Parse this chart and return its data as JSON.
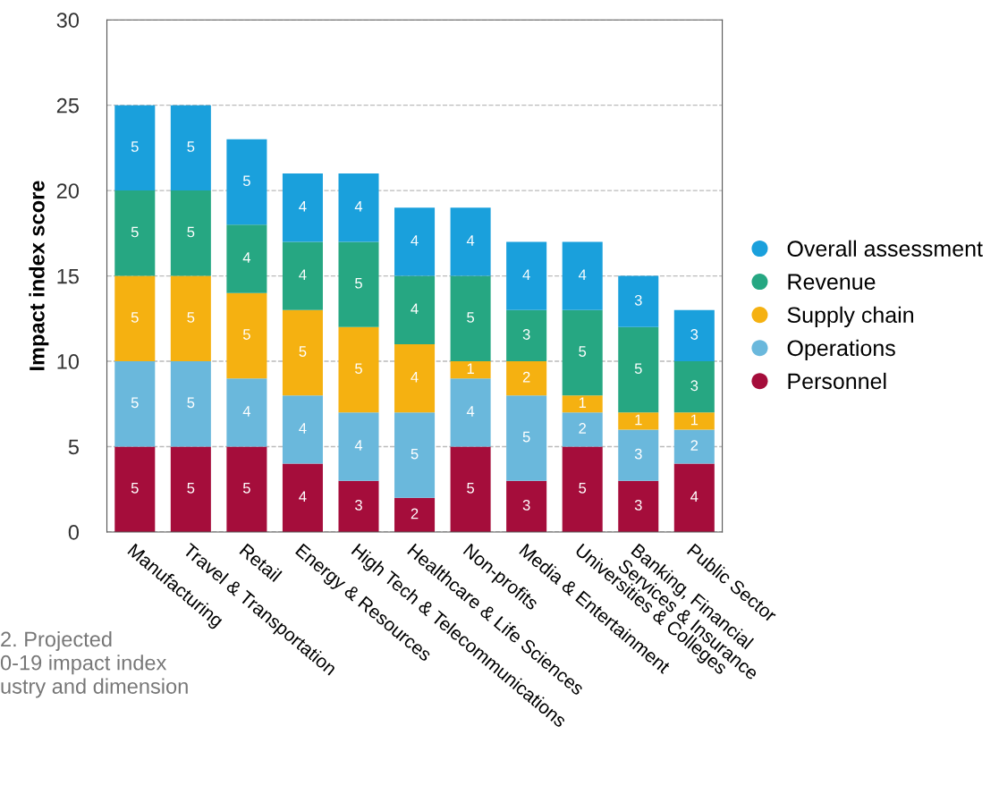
{
  "chart_data": {
    "type": "bar",
    "stacked": true,
    "ylabel": "Impact index score",
    "categories": [
      "Manufacturing",
      "Travel & Transportation",
      "Retail",
      "Energy & Resources",
      "High Tech & Telecommunications",
      "Healthcare & Life Sciences",
      "Non-profits",
      "Media & Entertainment",
      "Universities & Colleges",
      "Banking, Financial\nServices & Insurance",
      "Public Sector"
    ],
    "series": [
      {
        "name": "Personnel",
        "color": "#a50d3b",
        "values": [
          5,
          5,
          5,
          4,
          3,
          2,
          5,
          3,
          5,
          3,
          4
        ]
      },
      {
        "name": "Operations",
        "color": "#6ab8dc",
        "values": [
          5,
          5,
          4,
          4,
          4,
          5,
          4,
          5,
          2,
          3,
          2
        ]
      },
      {
        "name": "Supply chain",
        "color": "#f5b111",
        "values": [
          5,
          5,
          5,
          5,
          5,
          4,
          1,
          2,
          1,
          1,
          1
        ]
      },
      {
        "name": "Revenue",
        "color": "#26a782",
        "values": [
          5,
          5,
          4,
          4,
          5,
          4,
          5,
          3,
          5,
          5,
          3
        ]
      },
      {
        "name": "Overall assessment",
        "color": "#1aa0dc",
        "values": [
          5,
          5,
          5,
          4,
          4,
          4,
          4,
          4,
          4,
          3,
          3
        ]
      }
    ],
    "ylim": [
      0,
      30
    ],
    "yticks": [
      0,
      5,
      10,
      15,
      20,
      25,
      30
    ],
    "grid": "y",
    "legend": "right",
    "data_labels": true,
    "annotations": [
      "2. Projected\n0-19 impact index\nustry and dimension"
    ]
  }
}
